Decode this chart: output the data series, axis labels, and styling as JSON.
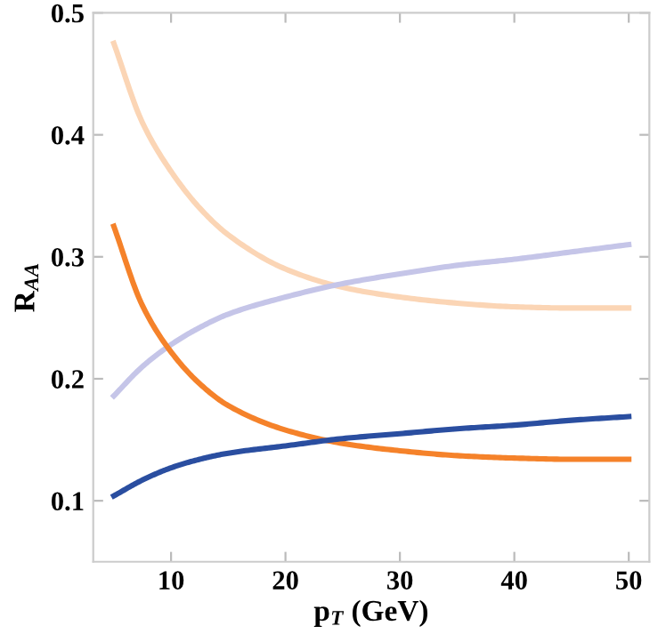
{
  "chart_data": {
    "type": "line",
    "xlabel": "p$_{T}$ (GeV)",
    "ylabel": "R$_{AA}$",
    "x": [
      5,
      7.5,
      10,
      12.5,
      15,
      20,
      25,
      30,
      35,
      40,
      45,
      50
    ],
    "xlim": [
      3.2,
      51.8
    ],
    "ylim": [
      0.05,
      0.5
    ],
    "xticks": [
      10,
      20,
      30,
      40,
      50
    ],
    "yticks": [
      0.1,
      0.2,
      0.3,
      0.4,
      0.5
    ],
    "grid": false,
    "legend": false,
    "marker": "none",
    "line_style": "solid",
    "series": [
      {
        "color": "#fbd5b5",
        "values": [
          0.475,
          0.41,
          0.37,
          0.34,
          0.318,
          0.29,
          0.275,
          0.267,
          0.262,
          0.259,
          0.258,
          0.258
        ]
      },
      {
        "color": "#c5c5e8",
        "values": [
          0.186,
          0.21,
          0.228,
          0.242,
          0.253,
          0.267,
          0.278,
          0.286,
          0.293,
          0.298,
          0.304,
          0.31
        ]
      },
      {
        "color": "#f5822a",
        "values": [
          0.325,
          0.26,
          0.222,
          0.196,
          0.178,
          0.158,
          0.147,
          0.141,
          0.137,
          0.135,
          0.134,
          0.134
        ]
      },
      {
        "color": "#2a4ea0",
        "values": [
          0.104,
          0.117,
          0.127,
          0.134,
          0.139,
          0.145,
          0.151,
          0.155,
          0.159,
          0.162,
          0.166,
          0.169
        ]
      }
    ]
  }
}
